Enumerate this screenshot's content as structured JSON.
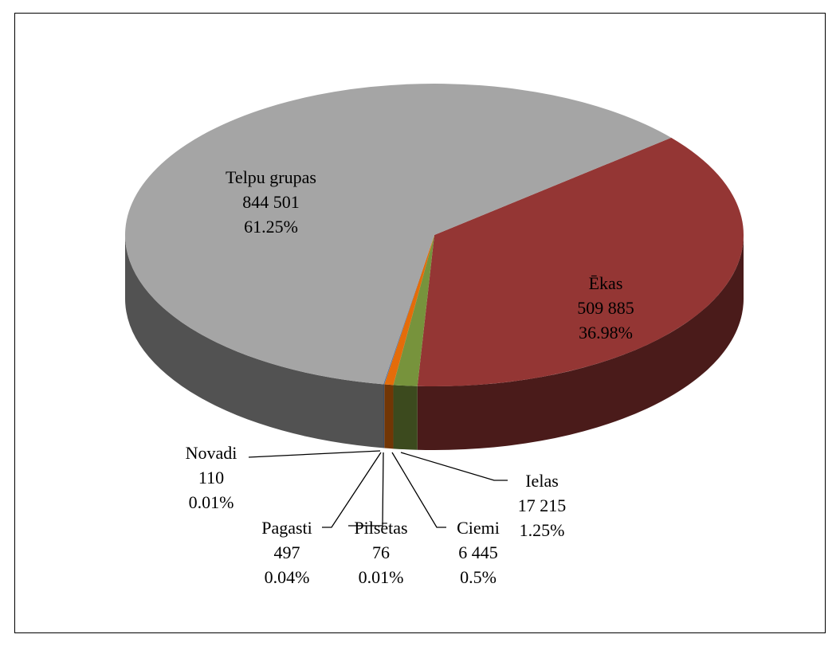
{
  "chart_data": {
    "type": "pie",
    "categories": [
      "Ēkas",
      "Ielas",
      "Ciemi",
      "Pilsētas",
      "Pagasti",
      "Novadi",
      "Telpu grupas"
    ],
    "values": [
      509885,
      17215,
      6445,
      76,
      497,
      110,
      844501
    ],
    "value_labels": [
      "509 885",
      "17 215",
      "6 445",
      "76",
      "497",
      "110",
      "844 501"
    ],
    "shares": [
      36.98,
      1.25,
      0.5,
      0.01,
      0.04,
      0.01,
      61.25
    ],
    "share_labels": [
      "36.98%",
      "1.25%",
      "0.5%",
      "0.01%",
      "0.04%",
      "0.01%",
      "61.25%"
    ],
    "colors": [
      "#943634",
      "#77933c",
      "#e46c0a",
      "#4f81bd",
      "#3d6b9c",
      "#604a7b",
      "#a5a5a5"
    ]
  }
}
